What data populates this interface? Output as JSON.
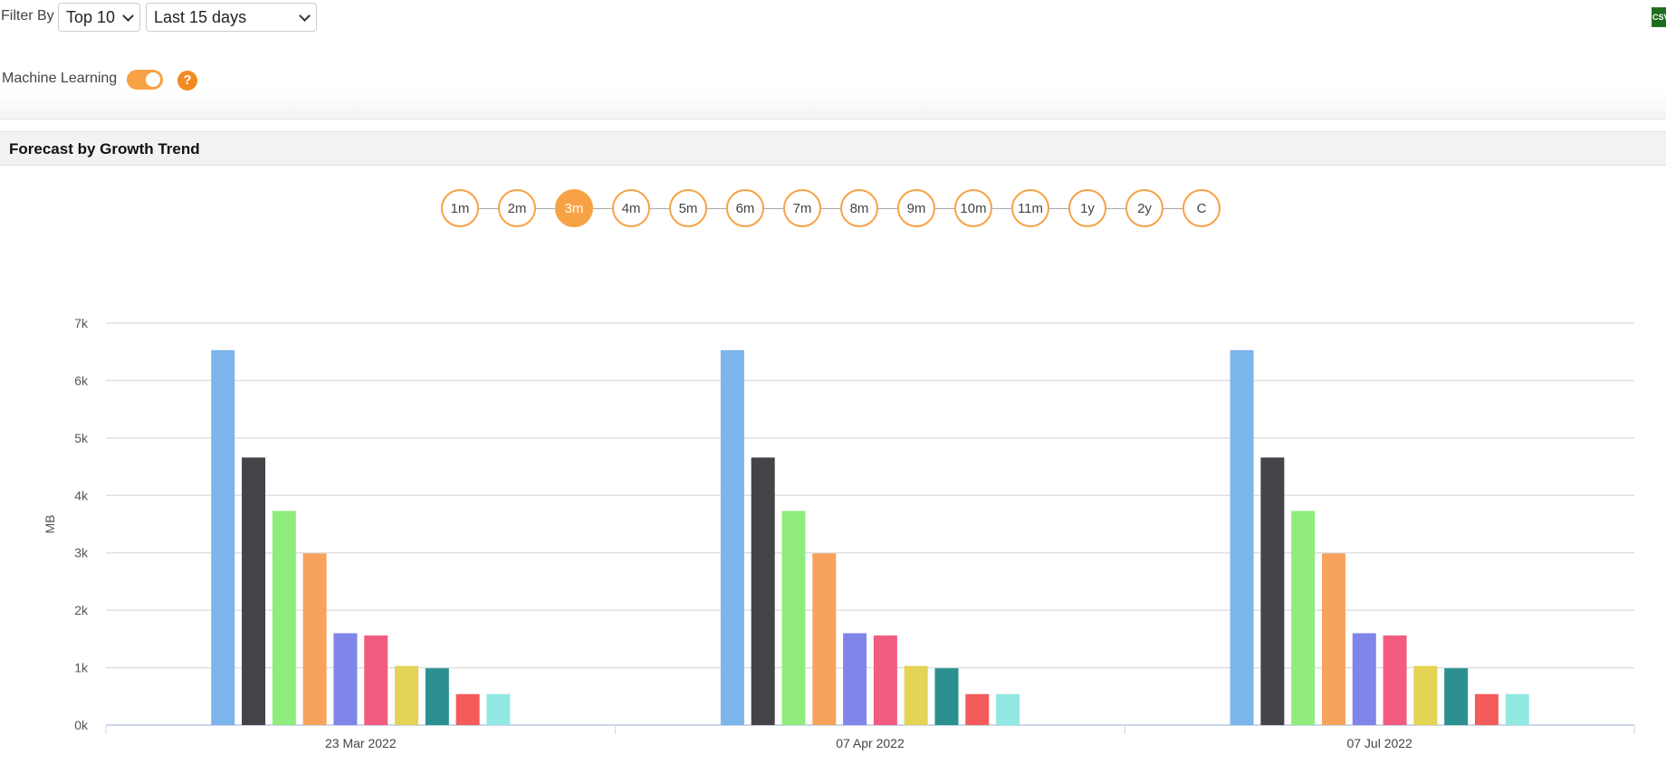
{
  "filter": {
    "label": "Filter By",
    "top": "Top 10",
    "range": "Last 15 days"
  },
  "export": {
    "icon": "csv-icon",
    "label": "CSV"
  },
  "ml": {
    "label": "Machine Learning",
    "enabled": true,
    "help": "?"
  },
  "section": {
    "title": "Forecast by Growth Trend"
  },
  "periods": [
    "1m",
    "2m",
    "3m",
    "4m",
    "5m",
    "6m",
    "7m",
    "8m",
    "9m",
    "10m",
    "11m",
    "1y",
    "2y",
    "C"
  ],
  "active_period": "3m",
  "accent": "#f7a244",
  "chart_data": {
    "type": "bar",
    "ylabel": "MB",
    "ylim": [
      0,
      7000
    ],
    "yticks": [
      "0k",
      "1k",
      "2k",
      "3k",
      "4k",
      "5k",
      "6k",
      "7k"
    ],
    "grid": true,
    "categories": [
      "23 Mar 2022",
      "07 Apr 2022",
      "07 Jul 2022"
    ],
    "colors": [
      "#7cb5ec",
      "#434348",
      "#90ed7d",
      "#f7a35c",
      "#8085e9",
      "#f15c80",
      "#e4d354",
      "#2b908f",
      "#f45b5b",
      "#91e8e1"
    ],
    "series": [
      {
        "values": [
          6530,
          6530,
          6530
        ]
      },
      {
        "values": [
          4660,
          4660,
          4660
        ]
      },
      {
        "values": [
          3730,
          3730,
          3730
        ]
      },
      {
        "values": [
          2990,
          2990,
          2990
        ]
      },
      {
        "values": [
          1600,
          1600,
          1600
        ]
      },
      {
        "values": [
          1560,
          1560,
          1560
        ]
      },
      {
        "values": [
          1030,
          1030,
          1030
        ]
      },
      {
        "values": [
          990,
          990,
          990
        ]
      },
      {
        "values": [
          540,
          540,
          540
        ]
      },
      {
        "values": [
          540,
          540,
          540
        ]
      }
    ]
  }
}
